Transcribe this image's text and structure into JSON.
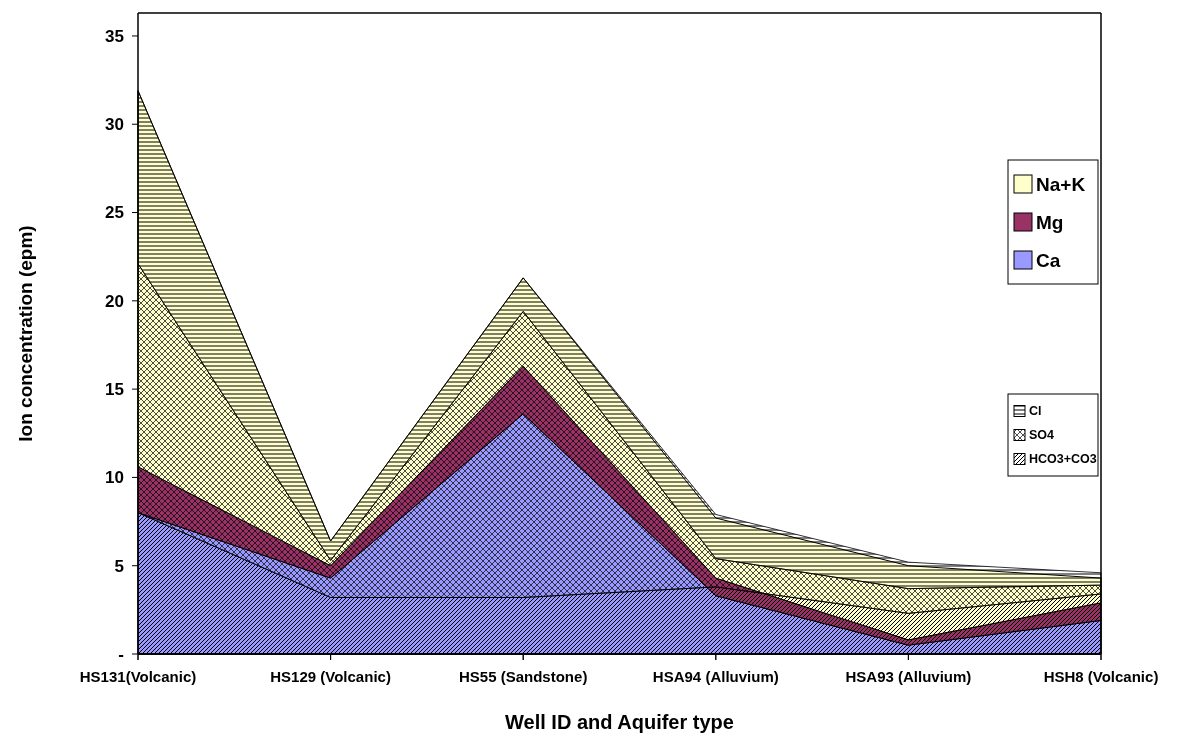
{
  "chart_data": [
    {
      "type": "area",
      "stacked": true,
      "xlabel": "Well ID and Aquifer type",
      "ylabel": "Ion concentration (epm)",
      "categories": [
        "HS131(Volcanic)",
        "HS129 (Volcanic)",
        "HS55 (Sandstone)",
        "HSA94 (Alluvium)",
        "HSA93 (Alluvium)",
        "HSH8 (Volcanic)"
      ],
      "ylim": [
        0,
        36.3
      ],
      "yticks": [
        {
          "value": 0,
          "label": "-"
        },
        5,
        10,
        15,
        20,
        25,
        30,
        35
      ],
      "legend": "top right",
      "series": [
        {
          "name": "Ca",
          "color": "#9999ff",
          "values": [
            8.0,
            4.3,
            13.6,
            3.3,
            0.5,
            1.9
          ]
        },
        {
          "name": "Mg",
          "color": "#993366",
          "values": [
            2.6,
            0.7,
            2.7,
            1.0,
            0.3,
            1.0
          ]
        },
        {
          "name": "Na+K",
          "color": "#ffffcc",
          "values": [
            21.3,
            1.4,
            5.0,
            3.4,
            4.2,
            1.4
          ]
        }
      ]
    },
    {
      "type": "area",
      "stacked": true,
      "categories": [
        null,
        null,
        null,
        null,
        null,
        null
      ],
      "ylim": [
        0,
        36.3
      ],
      "legend": "right",
      "series": [
        {
          "name": "HCO3+CO3",
          "color": "#000000",
          "values": [
            8.0,
            3.2,
            3.2,
            3.8,
            2.3,
            3.4
          ]
        },
        {
          "name": "SO4",
          "color": "#000000",
          "values": [
            14.1,
            2.1,
            16.2,
            1.6,
            1.4,
            0.5
          ]
        },
        {
          "name": "Cl",
          "color": "#000000",
          "values": [
            9.8,
            1.1,
            1.9,
            2.5,
            1.5,
            0.7
          ]
        }
      ]
    }
  ]
}
